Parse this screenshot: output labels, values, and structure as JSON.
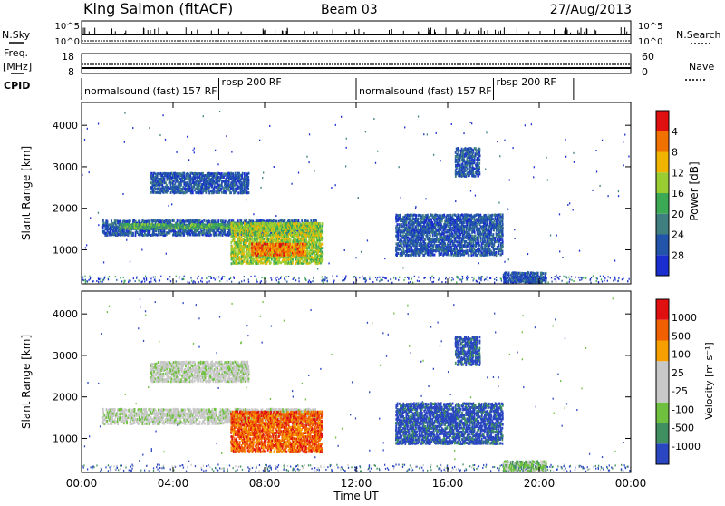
{
  "header": {
    "station": "King Salmon (fitACF)",
    "beam": "Beam 03",
    "date": "27/Aug/2013"
  },
  "top_strips": {
    "nsky_label": "N.Sky",
    "nsky_ticks": [
      "10^5",
      "10^0"
    ],
    "nsearch_label": "N.Search",
    "nsearch_ticks": [
      "10^5",
      "10^0"
    ],
    "freq_label": "Freq.",
    "freq_unit": "[MHz]",
    "freq_ticks": [
      "18",
      "8"
    ],
    "nave_label": "Nave",
    "nave_ticks": [
      "60",
      "0"
    ],
    "cpid_label": "CPID",
    "cpid_segments": [
      {
        "label": "normalsound (fast) 157 RF",
        "start": 0,
        "end": 6
      },
      {
        "label": "rbsp 200 RF",
        "start": 6,
        "end": 12
      },
      {
        "label": "normalsound (fast) 157 RF",
        "start": 12,
        "end": 18
      },
      {
        "label": "rbsp 200 RF",
        "start": 18,
        "end": 21.5
      }
    ]
  },
  "chart_data": [
    {
      "type": "heatmap",
      "title": "",
      "xlabel": "Time UT",
      "ylabel": "Slant Range [km]",
      "xlim": [
        0,
        24
      ],
      "ylim": [
        180,
        4550
      ],
      "x_ticks": [
        "00:00",
        "04:00",
        "08:00",
        "12:00",
        "16:00",
        "20:00",
        "00:00"
      ],
      "x_tick_hours": [
        0,
        4,
        8,
        12,
        16,
        20,
        24
      ],
      "y_ticks": [
        1000,
        2000,
        3000,
        4000
      ],
      "colorbar_label": "Power [dB]",
      "colorbar_ticks": [
        "4",
        "8",
        "12",
        "16",
        "20",
        "24",
        "28"
      ],
      "colorbar_colors": [
        "#1a2ecf",
        "#2255aa",
        "#3f7f7f",
        "#3caa55",
        "#9acd32",
        "#f0b400",
        "#f07000",
        "#e01010"
      ],
      "regions": [
        {
          "t0": 0.9,
          "t1": 10.3,
          "r0": 1380,
          "r1": 1760,
          "level": 1
        },
        {
          "t0": 1.6,
          "t1": 10.3,
          "r0": 1540,
          "r1": 1660,
          "level": 3
        },
        {
          "t0": 6.5,
          "t1": 10.5,
          "r0": 700,
          "r1": 1700,
          "level": 4
        },
        {
          "t0": 7.4,
          "t1": 9.8,
          "r0": 900,
          "r1": 1200,
          "level": 6
        },
        {
          "t0": 3.0,
          "t1": 7.3,
          "r0": 2400,
          "r1": 2900,
          "level": 1
        },
        {
          "t0": 13.7,
          "t1": 18.4,
          "r0": 900,
          "r1": 1900,
          "level": 1
        },
        {
          "t0": 16.3,
          "t1": 17.4,
          "r0": 2800,
          "r1": 3500,
          "level": 1
        },
        {
          "t0": 18.4,
          "t1": 20.3,
          "r0": 250,
          "r1": 500,
          "level": 1
        }
      ]
    },
    {
      "type": "heatmap",
      "title": "",
      "xlabel": "Time UT",
      "ylabel": "Slant Range [km]",
      "xlim": [
        0,
        24
      ],
      "ylim": [
        180,
        4550
      ],
      "x_ticks": [
        "00:00",
        "04:00",
        "08:00",
        "12:00",
        "16:00",
        "20:00",
        "00:00"
      ],
      "x_tick_hours": [
        0,
        4,
        8,
        12,
        16,
        20,
        24
      ],
      "y_ticks": [
        1000,
        2000,
        3000,
        4000
      ],
      "colorbar_label": "Velocity [m s⁻¹]",
      "colorbar_ticks": [
        "1000",
        "500",
        "100",
        "25",
        "-25",
        "-100",
        "-500",
        "-1000"
      ],
      "colorbar_colors": [
        "#2a46c0",
        "#3f8f60",
        "#6fc03f",
        "#c8c8c8",
        "#c8c8c8",
        "#f5a000",
        "#f06000",
        "#e01010"
      ],
      "regions": [
        {
          "t0": 0.9,
          "t1": 10.3,
          "r0": 1380,
          "r1": 1760,
          "level": 3
        },
        {
          "t0": 6.5,
          "t1": 10.5,
          "r0": 700,
          "r1": 1700,
          "level": 6
        },
        {
          "t0": 3.0,
          "t1": 7.3,
          "r0": 2400,
          "r1": 2900,
          "level": 3
        },
        {
          "t0": 13.7,
          "t1": 18.4,
          "r0": 900,
          "r1": 1900,
          "level": 0
        },
        {
          "t0": 16.3,
          "t1": 17.4,
          "r0": 2800,
          "r1": 3500,
          "level": 0
        },
        {
          "t0": 18.4,
          "t1": 20.3,
          "r0": 250,
          "r1": 500,
          "level": 2
        }
      ]
    }
  ]
}
